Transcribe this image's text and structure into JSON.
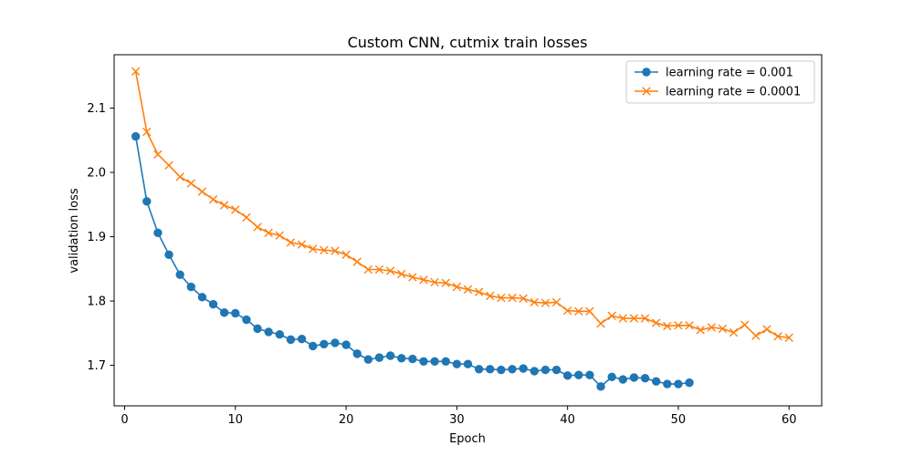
{
  "chart_data": {
    "type": "line",
    "title": "Custom CNN, cutmix train losses",
    "xlabel": "Epoch",
    "ylabel": "validation loss",
    "xlim": [
      -0.95,
      62.95
    ],
    "ylim": [
      1.637,
      2.183
    ],
    "xticks": [
      0,
      10,
      20,
      30,
      40,
      50,
      60
    ],
    "yticks": [
      1.7,
      1.8,
      1.9,
      2.0,
      2.1
    ],
    "xtick_labels": [
      "0",
      "10",
      "20",
      "30",
      "40",
      "50",
      "60"
    ],
    "ytick_labels": [
      "1.7",
      "1.8",
      "1.9",
      "2.0",
      "2.1"
    ],
    "grid": false,
    "legend_position": "top-right",
    "series": [
      {
        "name": "learning rate = 0.001",
        "color": "#1f77b4",
        "marker": "circle",
        "x": [
          1,
          2,
          3,
          4,
          5,
          6,
          7,
          8,
          9,
          10,
          11,
          12,
          13,
          14,
          15,
          16,
          17,
          18,
          19,
          20,
          21,
          22,
          23,
          24,
          25,
          26,
          27,
          28,
          29,
          30,
          31,
          32,
          33,
          34,
          35,
          36,
          37,
          38,
          39,
          40,
          41,
          42,
          43,
          44,
          45,
          46,
          47,
          48,
          49,
          50,
          51
        ],
        "y": [
          2.056,
          1.955,
          1.906,
          1.872,
          1.841,
          1.822,
          1.806,
          1.795,
          1.782,
          1.781,
          1.771,
          1.757,
          1.752,
          1.748,
          1.74,
          1.741,
          1.73,
          1.733,
          1.735,
          1.732,
          1.718,
          1.709,
          1.712,
          1.715,
          1.711,
          1.71,
          1.706,
          1.706,
          1.706,
          1.702,
          1.702,
          1.694,
          1.694,
          1.693,
          1.694,
          1.695,
          1.691,
          1.693,
          1.693,
          1.684,
          1.685,
          1.685,
          1.667,
          1.682,
          1.678,
          1.681,
          1.68,
          1.675,
          1.671,
          1.671,
          1.673
        ]
      },
      {
        "name": "learning rate = 0.0001",
        "color": "#ff7f0e",
        "marker": "x",
        "x": [
          1,
          2,
          3,
          4,
          5,
          6,
          7,
          8,
          9,
          10,
          11,
          12,
          13,
          14,
          15,
          16,
          17,
          18,
          19,
          20,
          21,
          22,
          23,
          24,
          25,
          26,
          27,
          28,
          29,
          30,
          31,
          32,
          33,
          34,
          35,
          36,
          37,
          38,
          39,
          40,
          41,
          42,
          43,
          44,
          45,
          46,
          47,
          48,
          49,
          50,
          51,
          52,
          53,
          54,
          55,
          56,
          57,
          58,
          59,
          60
        ],
        "y": [
          2.157,
          2.063,
          2.028,
          2.011,
          1.993,
          1.983,
          1.97,
          1.958,
          1.949,
          1.942,
          1.93,
          1.915,
          1.906,
          1.902,
          1.891,
          1.888,
          1.881,
          1.879,
          1.878,
          1.872,
          1.861,
          1.849,
          1.849,
          1.847,
          1.842,
          1.837,
          1.833,
          1.829,
          1.828,
          1.822,
          1.818,
          1.814,
          1.808,
          1.805,
          1.805,
          1.804,
          1.798,
          1.797,
          1.798,
          1.785,
          1.784,
          1.784,
          1.765,
          1.777,
          1.773,
          1.773,
          1.773,
          1.766,
          1.761,
          1.762,
          1.762,
          1.755,
          1.759,
          1.757,
          1.751,
          1.763,
          1.746,
          1.756,
          1.745,
          1.743
        ]
      }
    ]
  }
}
